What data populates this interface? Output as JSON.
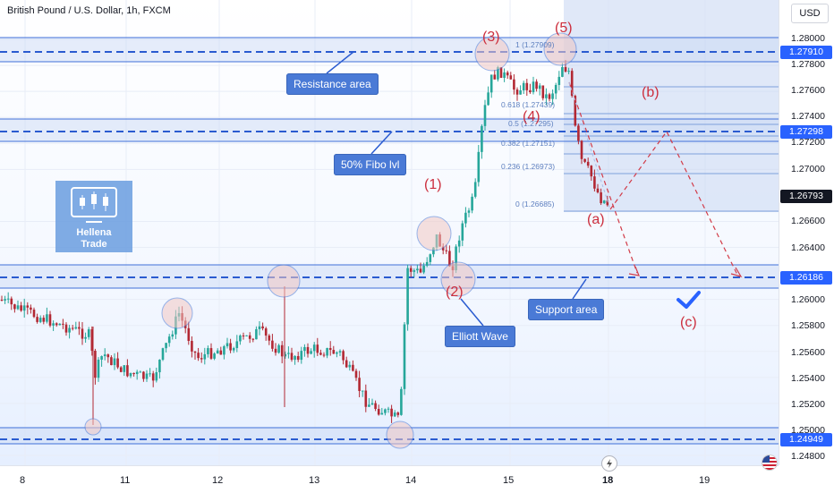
{
  "header": {
    "title": "British Pound / U.S. Dollar, 1h, FXCM"
  },
  "currency_button": "USD",
  "colors": {
    "accent": "#2962ff",
    "zone_line": "#3f6fd8",
    "bull": "#26a69a",
    "bear": "#b22833",
    "wave_label": "#cc2e3d",
    "callout_bg": "#4a7ad6"
  },
  "price_axis": {
    "ticks": [
      "1.28000",
      "1.27800",
      "1.27600",
      "1.27400",
      "1.27200",
      "1.27000",
      "1.26600",
      "1.26400",
      "1.26000",
      "1.25800",
      "1.25600",
      "1.25400",
      "1.25200",
      "1.25000",
      "1.24800"
    ],
    "tags": [
      {
        "label": "1.27910",
        "kind": "level"
      },
      {
        "label": "1.27298",
        "kind": "level"
      },
      {
        "label": "1.26793",
        "kind": "price"
      },
      {
        "label": "1.26186",
        "kind": "level"
      },
      {
        "label": "1.24949",
        "kind": "level"
      }
    ]
  },
  "time_axis": {
    "ticks": [
      "8",
      "11",
      "12",
      "13",
      "14",
      "15",
      "18",
      "19"
    ],
    "active": "18"
  },
  "annotations": {
    "resistance": "Resistance area",
    "fibo": "50% Fibo lvl",
    "support": "Support area",
    "elliott": "Elliott Wave"
  },
  "waves": {
    "w1": "(1)",
    "w2": "(2)",
    "w3": "(3)",
    "w4": "(4)",
    "w5": "(5)",
    "a": "(a)",
    "b": "(b)",
    "c": "(c)"
  },
  "fib_levels": [
    "1 (1.27909)",
    "0.618 (1.27439)",
    "0.5 (1.27295)",
    "0.382 (1.27151)",
    "0.236 (1.26973)",
    "0 (1.26685)"
  ],
  "logo": {
    "line1": "Hellena",
    "line2": "Trade"
  },
  "icons": {
    "flash": "flash-icon",
    "flag": "us-flag-icon",
    "check": "checkmark-icon"
  }
}
